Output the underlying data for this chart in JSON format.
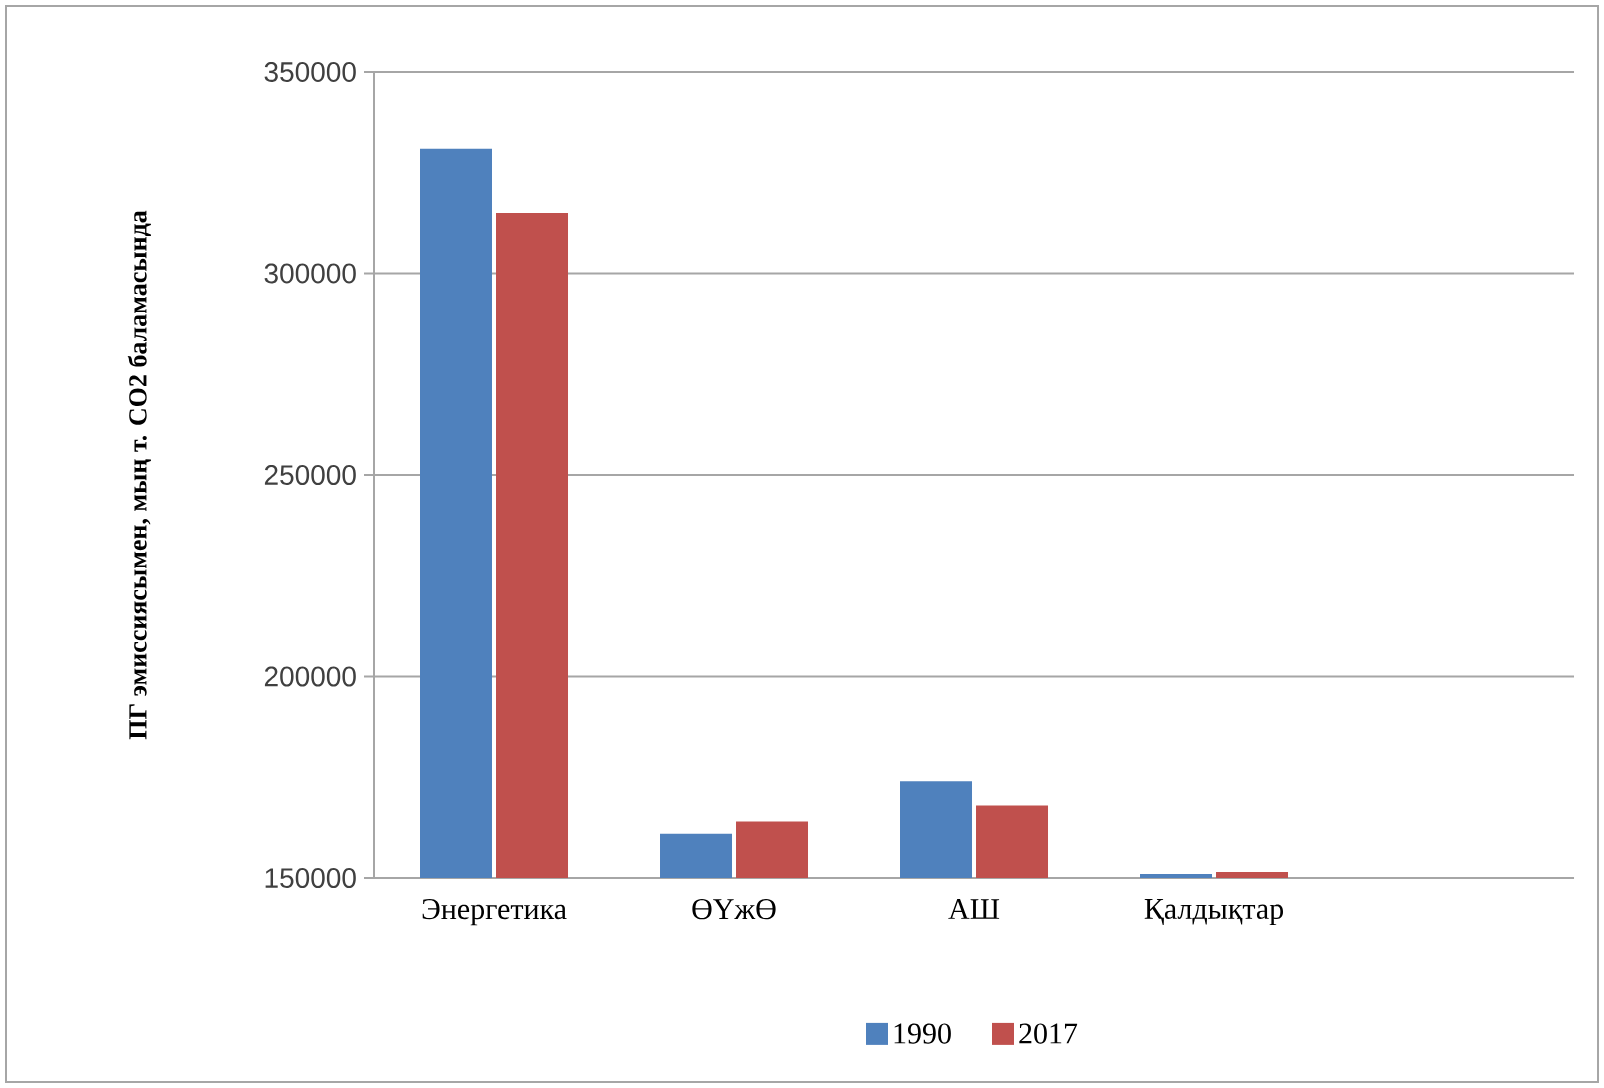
{
  "chart_data": {
    "type": "bar",
    "ylabel": "ПГ эмиссиясымен, мың т. CO2 баламасында",
    "categories": [
      "Энергетика",
      "ӨҮжӨ",
      "АШ",
      "Қалдықтар",
      null
    ],
    "series": [
      {
        "name": "1990",
        "color": "#4f81bd",
        "values": [
          331000,
          161000,
          174000,
          151000,
          null
        ]
      },
      {
        "name": "2017",
        "color": "#c0504d",
        "values": [
          315000,
          164000,
          168000,
          151500,
          null
        ]
      }
    ],
    "ylim": [
      150000,
      350000
    ],
    "yticks": [
      150000,
      200000,
      250000,
      300000,
      350000
    ],
    "grid": "y",
    "legend": "bottom"
  }
}
